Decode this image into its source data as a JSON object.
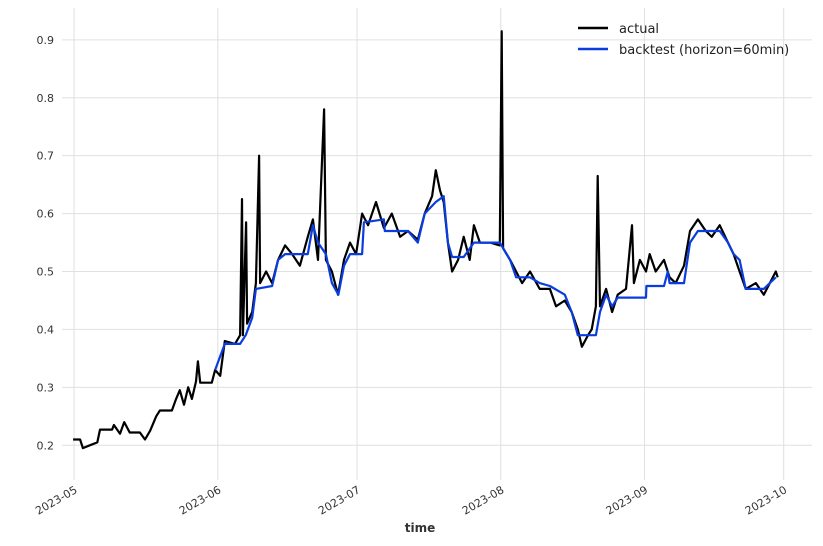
{
  "chart_data": {
    "type": "line",
    "xlabel": "time",
    "xlim": [
      -2.6,
      159.1
    ],
    "xticks": [
      {
        "value": 0,
        "label": "2023-05"
      },
      {
        "value": 31,
        "label": "2023-06"
      },
      {
        "value": 61,
        "label": "2023-07"
      },
      {
        "value": 92,
        "label": "2023-08"
      },
      {
        "value": 123,
        "label": "2023-09"
      },
      {
        "value": 153,
        "label": "2023-10"
      }
    ],
    "ylim": [
      0.14,
      0.955
    ],
    "yticks": [
      0.2,
      0.3,
      0.4,
      0.5,
      0.6,
      0.7,
      0.8,
      0.9
    ],
    "grid": true,
    "legend": "upper right",
    "series": [
      {
        "name": "actual",
        "color": "#000000",
        "x": [
          -0.2,
          1.3,
          1.9,
          3.4,
          5,
          5.6,
          8.2,
          8.6,
          9.9,
          10.8,
          12,
          14.2,
          15.3,
          16.4,
          17.7,
          18.5,
          21.1,
          22,
          22.8,
          23.7,
          24.6,
          25.4,
          26.3,
          26.7,
          27.2,
          29.7,
          30.4,
          31.5,
          32.5,
          34.7,
          35.8,
          36.2,
          36.4,
          37.1,
          37.3,
          38.4,
          39.2,
          39.9,
          40.1,
          41.4,
          42.7,
          44,
          45.5,
          47,
          48.7,
          50.4,
          51.5,
          52.6,
          53.9,
          54.3,
          55.6,
          56.9,
          58.2,
          59.5,
          60.8,
          62.1,
          63.4,
          65.1,
          66.8,
          68.5,
          70.3,
          72,
          74.1,
          75.6,
          77.2,
          78,
          78.9,
          79.7,
          80.6,
          81.5,
          82.8,
          84,
          85.3,
          86.2,
          87.5,
          89.7,
          91.8,
          92.2,
          92.5,
          94,
          95.3,
          96.6,
          98.3,
          100.4,
          102.6,
          103.9,
          105.8,
          107.3,
          108.6,
          109.5,
          110.8,
          111.6,
          112.5,
          112.9,
          113.4,
          114.7,
          116,
          117.2,
          119,
          120.3,
          120.7,
          122,
          123.3,
          124.1,
          125.4,
          127.2,
          128.4,
          129.7,
          131.5,
          132.8,
          134.5,
          136.2,
          137.5,
          139.2,
          141,
          142.2,
          143.5,
          144.8,
          147,
          148.7,
          150,
          151.3,
          151.7
        ],
        "values": [
          0.21,
          0.21,
          0.195,
          0.2,
          0.205,
          0.227,
          0.227,
          0.235,
          0.22,
          0.24,
          0.222,
          0.222,
          0.21,
          0.225,
          0.25,
          0.26,
          0.26,
          0.28,
          0.295,
          0.27,
          0.3,
          0.28,
          0.31,
          0.345,
          0.308,
          0.308,
          0.33,
          0.32,
          0.38,
          0.375,
          0.39,
          0.625,
          0.39,
          0.585,
          0.41,
          0.43,
          0.48,
          0.7,
          0.48,
          0.5,
          0.48,
          0.52,
          0.545,
          0.53,
          0.51,
          0.56,
          0.59,
          0.52,
          0.78,
          0.52,
          0.5,
          0.46,
          0.52,
          0.55,
          0.53,
          0.6,
          0.58,
          0.62,
          0.575,
          0.6,
          0.56,
          0.57,
          0.555,
          0.6,
          0.63,
          0.675,
          0.64,
          0.62,
          0.55,
          0.5,
          0.52,
          0.56,
          0.52,
          0.58,
          0.55,
          0.55,
          0.545,
          0.915,
          0.54,
          0.52,
          0.5,
          0.48,
          0.5,
          0.47,
          0.47,
          0.44,
          0.45,
          0.43,
          0.4,
          0.37,
          0.39,
          0.4,
          0.44,
          0.665,
          0.44,
          0.47,
          0.43,
          0.46,
          0.47,
          0.58,
          0.48,
          0.52,
          0.5,
          0.53,
          0.5,
          0.52,
          0.49,
          0.48,
          0.51,
          0.57,
          0.59,
          0.57,
          0.56,
          0.58,
          0.55,
          0.53,
          0.5,
          0.47,
          0.48,
          0.46,
          0.48,
          0.5,
          0.49
        ]
      },
      {
        "name": "backtest (horizon=60min)",
        "color": "#0a3de0",
        "x": [
          30.4,
          32.5,
          35.8,
          37,
          38.4,
          39.2,
          42.7,
          44,
          45.5,
          50.4,
          51.5,
          52.6,
          54.3,
          55.6,
          57,
          58.2,
          59.5,
          62.1,
          62.5,
          66.8,
          67,
          72,
          74.1,
          75.6,
          78,
          79.7,
          80.6,
          81.5,
          84,
          86.2,
          91.8,
          94,
          95.3,
          98.3,
          100.4,
          102.6,
          105.8,
          107.3,
          108.6,
          112.5,
          113.4,
          114.7,
          116,
          117.2,
          123.3,
          123.4,
          127.2,
          128,
          128.4,
          131.5,
          132.8,
          134.5,
          139.2,
          141,
          142.2,
          143.5,
          144.8,
          148.7,
          150,
          151.3
        ],
        "values": [
          0.33,
          0.375,
          0.375,
          0.39,
          0.42,
          0.47,
          0.475,
          0.52,
          0.53,
          0.53,
          0.58,
          0.55,
          0.53,
          0.48,
          0.46,
          0.51,
          0.53,
          0.53,
          0.585,
          0.59,
          0.57,
          0.57,
          0.55,
          0.6,
          0.62,
          0.63,
          0.55,
          0.525,
          0.525,
          0.55,
          0.55,
          0.52,
          0.49,
          0.49,
          0.48,
          0.475,
          0.46,
          0.43,
          0.39,
          0.39,
          0.43,
          0.46,
          0.44,
          0.455,
          0.455,
          0.475,
          0.475,
          0.5,
          0.48,
          0.48,
          0.55,
          0.57,
          0.57,
          0.55,
          0.53,
          0.52,
          0.47,
          0.47,
          0.48,
          0.49
        ]
      }
    ]
  }
}
